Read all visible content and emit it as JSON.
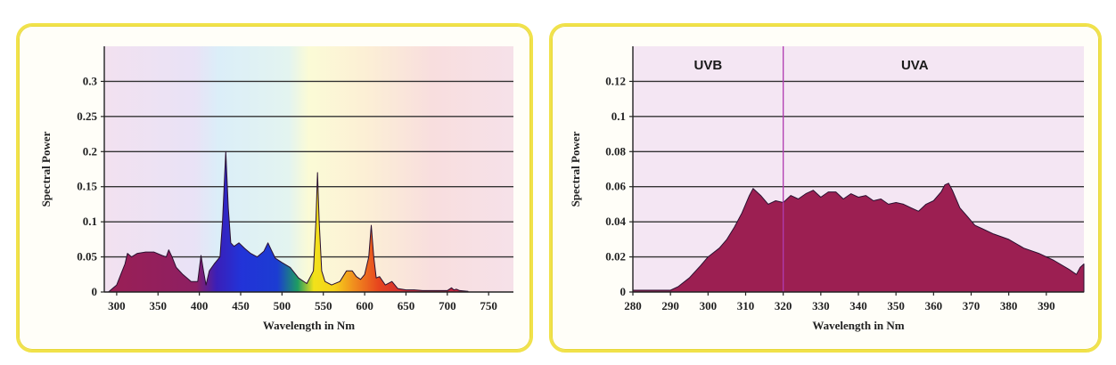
{
  "colors": {
    "frame": "#f1e24a",
    "plot_bg": "#f4e6f3",
    "grid": "#333333",
    "fill_main": "#9c1f52",
    "divider": "#b03ab0"
  },
  "chart_data": [
    {
      "type": "area",
      "title": "",
      "xlabel": "Wavelength in Nm",
      "ylabel": "Spectral Power",
      "xlim": [
        285,
        780
      ],
      "ylim": [
        0,
        0.35
      ],
      "x_ticks": [
        300,
        350,
        400,
        450,
        500,
        550,
        600,
        650,
        700,
        750
      ],
      "y_ticks": [
        0,
        0.05,
        0.1,
        0.15,
        0.2,
        0.25,
        0.3
      ],
      "y_tick_labels": [
        "0",
        "0.05",
        "0.1",
        "0.15",
        "0.2",
        "0.25",
        "0.3"
      ],
      "grid": "horizontal",
      "background": "visible-spectrum gradient",
      "series": [
        {
          "x": [
            290,
            300,
            305,
            310,
            313,
            318,
            325,
            335,
            345,
            355,
            360,
            363,
            367,
            372,
            380,
            390,
            398,
            402,
            405,
            408,
            412,
            418,
            425,
            428,
            432,
            435,
            438,
            442,
            448,
            455,
            462,
            470,
            478,
            483,
            487,
            492,
            500,
            510,
            520,
            530,
            538,
            541,
            543,
            545,
            548,
            552,
            560,
            570,
            578,
            585,
            590,
            595,
            600,
            605,
            608,
            611,
            614,
            618,
            625,
            633,
            640,
            650,
            660,
            670,
            680,
            690,
            700,
            705,
            708,
            711,
            715,
            725
          ],
          "y": [
            0.0,
            0.01,
            0.025,
            0.04,
            0.055,
            0.05,
            0.055,
            0.057,
            0.057,
            0.052,
            0.05,
            0.06,
            0.05,
            0.035,
            0.025,
            0.015,
            0.015,
            0.052,
            0.03,
            0.01,
            0.03,
            0.04,
            0.05,
            0.1,
            0.2,
            0.12,
            0.07,
            0.065,
            0.07,
            0.062,
            0.055,
            0.05,
            0.058,
            0.07,
            0.06,
            0.048,
            0.042,
            0.035,
            0.02,
            0.012,
            0.03,
            0.1,
            0.17,
            0.1,
            0.03,
            0.015,
            0.01,
            0.015,
            0.03,
            0.03,
            0.022,
            0.018,
            0.025,
            0.05,
            0.095,
            0.05,
            0.02,
            0.022,
            0.01,
            0.015,
            0.005,
            0.003,
            0.003,
            0.002,
            0.002,
            0.002,
            0.002,
            0.006,
            0.003,
            0.004,
            0.002,
            0.001
          ]
        }
      ]
    },
    {
      "type": "area",
      "title": "",
      "xlabel": "Wavelength in Nm",
      "ylabel": "Spectral Power",
      "xlim": [
        280,
        400
      ],
      "ylim": [
        0,
        0.14
      ],
      "x_ticks": [
        280,
        290,
        300,
        310,
        320,
        330,
        340,
        350,
        360,
        370,
        380,
        390
      ],
      "y_ticks": [
        0,
        0.02,
        0.04,
        0.06,
        0.08,
        0.1,
        0.12
      ],
      "y_tick_labels": [
        "0",
        "0.02",
        "0.04",
        "0.06",
        "0.08",
        "0.1",
        "0.12"
      ],
      "grid": "horizontal",
      "annotations": [
        {
          "text": "UVB",
          "x": 300
        },
        {
          "text": "UVA",
          "x": 355
        }
      ],
      "divider_x": 320,
      "series": [
        {
          "x": [
            280,
            285,
            290,
            292,
            295,
            298,
            300,
            303,
            305,
            307,
            309,
            311,
            312,
            314,
            316,
            318,
            320,
            322,
            324,
            326,
            328,
            330,
            332,
            334,
            336,
            338,
            340,
            342,
            344,
            346,
            348,
            350,
            352,
            354,
            356,
            358,
            360,
            362,
            363,
            364,
            365,
            367,
            369,
            371,
            373,
            376,
            380,
            384,
            388,
            392,
            396,
            398,
            399,
            400
          ],
          "y": [
            0.001,
            0.001,
            0.001,
            0.003,
            0.008,
            0.015,
            0.02,
            0.025,
            0.03,
            0.037,
            0.045,
            0.055,
            0.059,
            0.055,
            0.05,
            0.052,
            0.051,
            0.055,
            0.053,
            0.056,
            0.058,
            0.054,
            0.057,
            0.057,
            0.053,
            0.056,
            0.054,
            0.055,
            0.052,
            0.053,
            0.05,
            0.051,
            0.05,
            0.048,
            0.046,
            0.05,
            0.052,
            0.057,
            0.061,
            0.062,
            0.058,
            0.048,
            0.043,
            0.038,
            0.036,
            0.033,
            0.03,
            0.025,
            0.022,
            0.018,
            0.013,
            0.01,
            0.014,
            0.016
          ]
        }
      ]
    }
  ]
}
